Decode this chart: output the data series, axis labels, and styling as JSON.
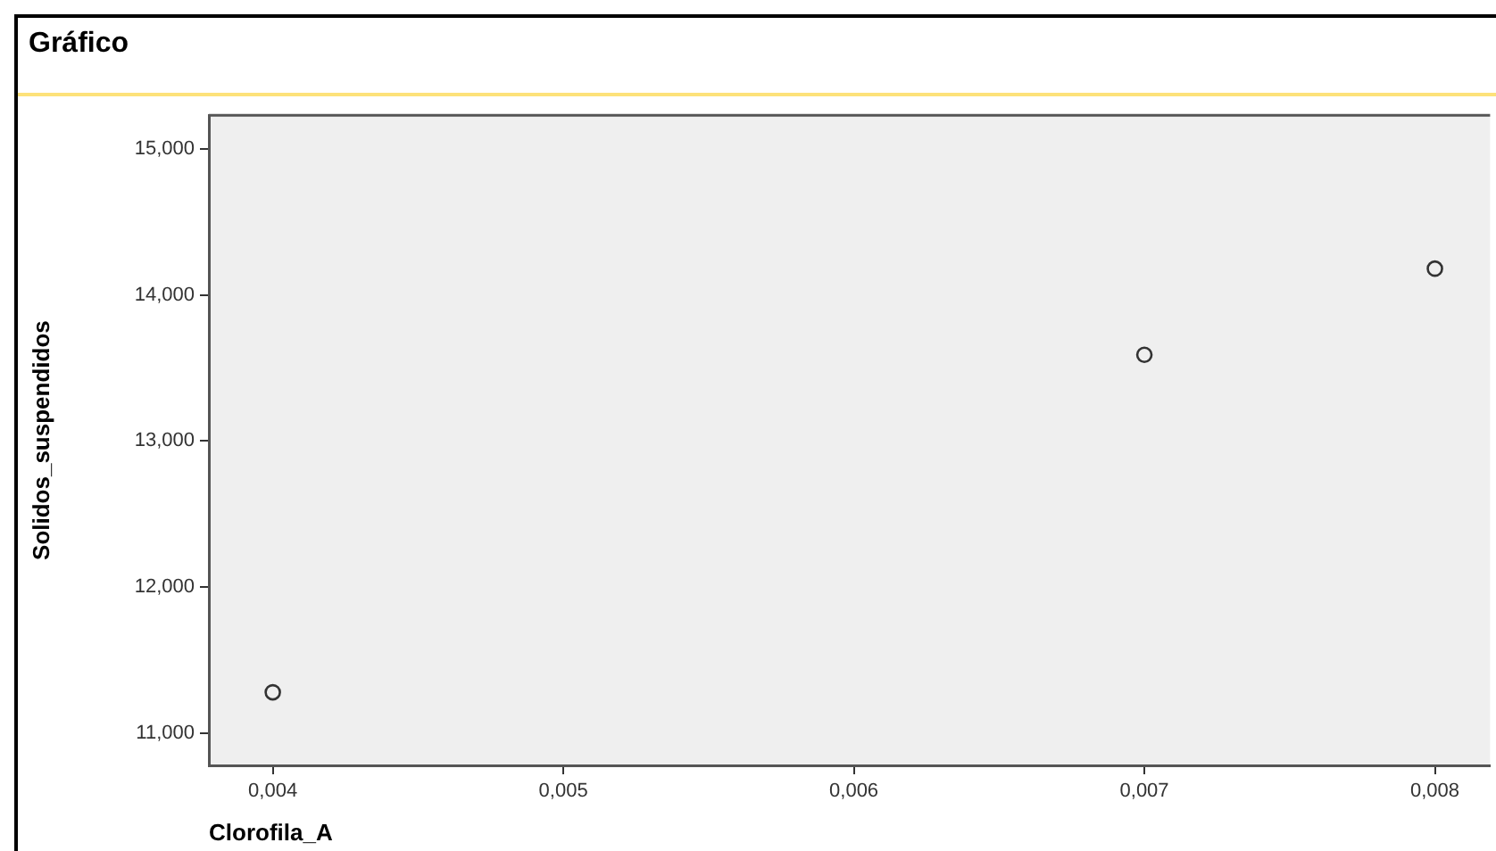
{
  "chart_data": {
    "type": "scatter",
    "title": "Gráfico",
    "xlabel": "Clorofila_A",
    "ylabel": "Solidos_suspendidos",
    "x": [
      0.004,
      0.007,
      0.008
    ],
    "series": [
      {
        "color": "#333333",
        "values": [
          11.28,
          13.59,
          14.18
        ]
      }
    ],
    "xlim": [
      0.00378,
      0.00819
    ],
    "xticks": [
      {
        "value": 0.004,
        "label": "0,004"
      },
      {
        "value": 0.005,
        "label": "0,005"
      },
      {
        "value": 0.006,
        "label": "0,006"
      },
      {
        "value": 0.007,
        "label": "0,007"
      },
      {
        "value": 0.008,
        "label": "0,008"
      }
    ],
    "ylim": [
      10.78,
      15.23
    ],
    "yticks": [
      {
        "value": 11,
        "label": "11,000"
      },
      {
        "value": 12,
        "label": "12,000"
      },
      {
        "value": 13,
        "label": "13,000"
      },
      {
        "value": 14,
        "label": "14,000"
      },
      {
        "value": 15,
        "label": "15,000"
      }
    ],
    "grid": false,
    "legend": false,
    "marker": "circle"
  }
}
